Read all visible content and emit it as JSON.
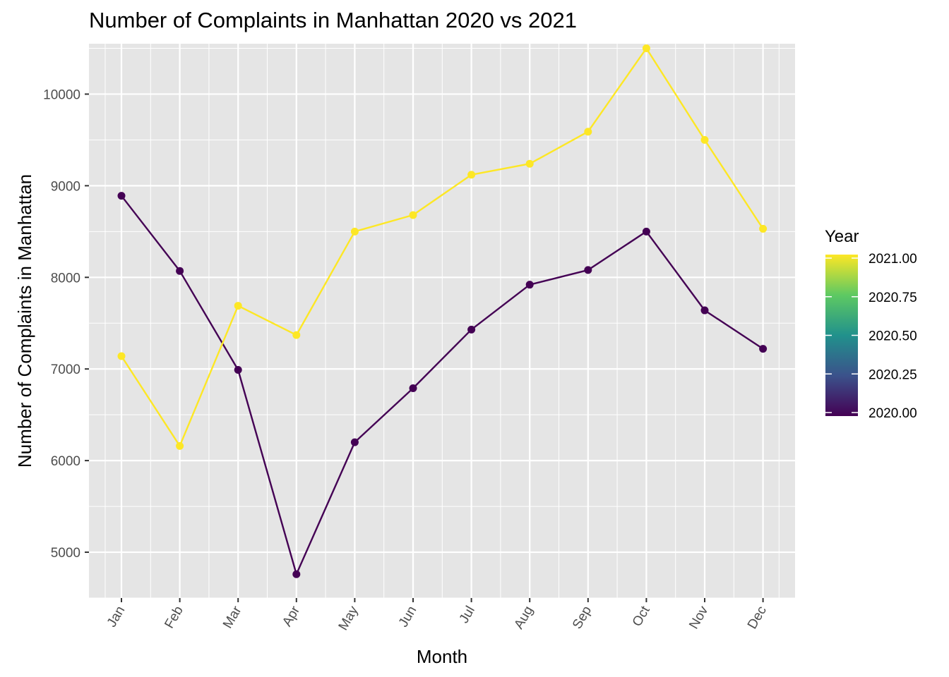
{
  "chart_data": {
    "type": "line",
    "title": "Number of Complaints in Manhattan 2020 vs 2021",
    "xlabel": "Month",
    "ylabel": "Number of Complaints in Manhattan",
    "categories": [
      "Jan",
      "Feb",
      "Mar",
      "Apr",
      "May",
      "Jun",
      "Jul",
      "Aug",
      "Sep",
      "Oct",
      "Nov",
      "Dec"
    ],
    "ylim": [
      4500,
      10550
    ],
    "yticks": [
      5000,
      6000,
      7000,
      8000,
      9000,
      10000
    ],
    "ytick_labels": [
      "5000",
      "6000",
      "7000",
      "8000",
      "9000",
      "10000"
    ],
    "grid": true,
    "series": [
      {
        "year": 2020,
        "color": "#440154",
        "values": [
          8890,
          8070,
          6990,
          4760,
          6200,
          6790,
          7430,
          7920,
          8080,
          8500,
          7640,
          7220
        ]
      },
      {
        "year": 2021,
        "color": "#fde725",
        "values": [
          7140,
          6160,
          7690,
          7370,
          8500,
          8680,
          9120,
          9240,
          9590,
          10500,
          9500,
          8530
        ]
      }
    ],
    "legend": {
      "title": "Year",
      "placement": "right",
      "type": "colorbar",
      "labels": [
        "2021.00",
        "2020.75",
        "2020.50",
        "2020.25",
        "2020.00"
      ],
      "gradient_colors": [
        "#fde725",
        "#5ec962",
        "#21918c",
        "#3b528b",
        "#440154"
      ]
    },
    "panel_background": "#e5e5e5",
    "grid_color": "#ffffff"
  }
}
